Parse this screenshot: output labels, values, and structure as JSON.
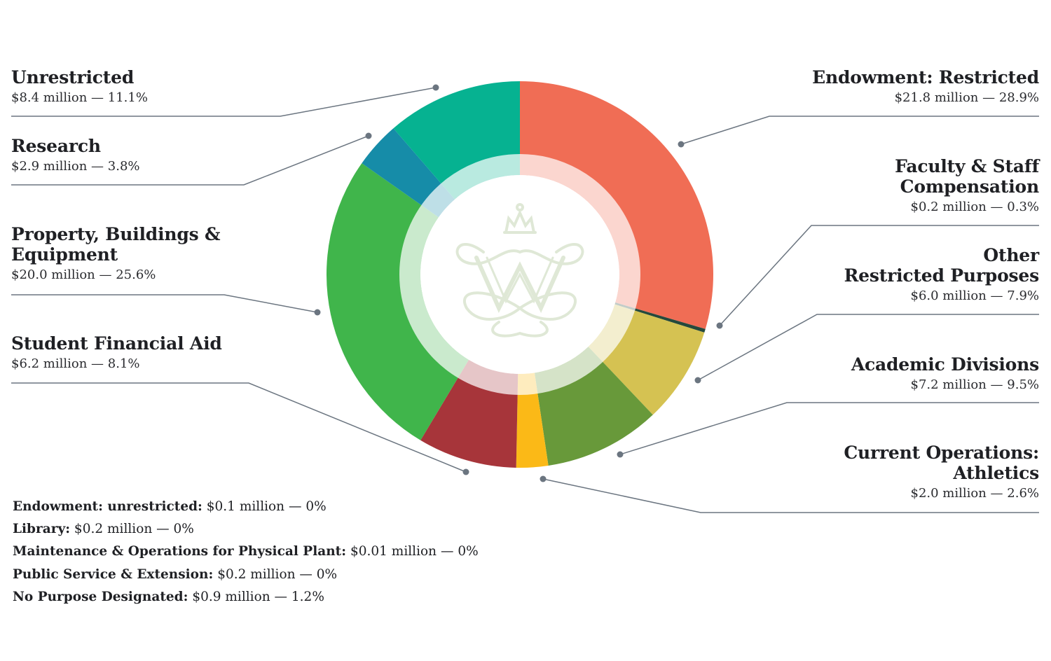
{
  "chart_data": {
    "type": "pie",
    "style": "donut",
    "slices": [
      {
        "label": "Endowment: Restricted",
        "value": 21.8,
        "percent": 28.9,
        "value_text": "$21.8 million — 28.9%",
        "color": "#f06d55"
      },
      {
        "label": "Faculty & Staff Compensation",
        "value": 0.2,
        "percent": 0.3,
        "value_text": "$0.2 million — 0.3%",
        "color": "#25493c"
      },
      {
        "label": "Other Restricted Purposes",
        "value": 6.0,
        "percent": 7.9,
        "value_text": "$6.0 million — 7.9%",
        "color": "#d5c252"
      },
      {
        "label": "Academic Divisions",
        "value": 7.2,
        "percent": 9.5,
        "value_text": "$7.2 million — 9.5%",
        "color": "#68993a"
      },
      {
        "label": "Current Operations: Athletics",
        "value": 2.0,
        "percent": 2.6,
        "value_text": "$2.0 million — 2.6%",
        "color": "#fbb917"
      },
      {
        "label": "Student Financial Aid",
        "value": 6.2,
        "percent": 8.1,
        "value_text": "$6.2 million — 8.1%",
        "color": "#a7353a"
      },
      {
        "label": "Property, Buildings & Equipment",
        "value": 20.0,
        "percent": 25.6,
        "value_text": "$20.0 million — 25.6%",
        "color": "#40b54b"
      },
      {
        "label": "Research",
        "value": 2.9,
        "percent": 3.8,
        "value_text": "$2.9 million — 3.8%",
        "color": "#168ca8"
      },
      {
        "label": "Unrestricted",
        "value": 8.4,
        "percent": 11.1,
        "value_text": "$8.4 million — 11.1%",
        "color": "#06b291"
      }
    ],
    "unplotted": [
      {
        "label": "Endowment: unrestricted:",
        "value_text": "$0.1 million — 0%"
      },
      {
        "label": "Library:",
        "value_text": "$0.2 million — 0%"
      },
      {
        "label": "Maintenance & Operations for Physical Plant:",
        "value_text": "$0.01 million — 0%"
      },
      {
        "label": "Public Service & Extension:",
        "value_text": "$0.2 million — 0%"
      },
      {
        "label": "No Purpose Designated:",
        "value_text": "$0.9 million — 1.2%"
      }
    ]
  },
  "labels": {
    "unrestricted": {
      "name": "Unrestricted",
      "value": "$8.4 million — 11.1%"
    },
    "research": {
      "name": "Research",
      "value": "$2.9 million — 3.8%"
    },
    "property": {
      "name_line1": "Property, Buildings &",
      "name_line2": "Equipment",
      "value": "$20.0 million — 25.6%"
    },
    "student_aid": {
      "name": "Student Financial Aid",
      "value": "$6.2 million — 8.1%"
    },
    "endowment_restricted": {
      "name": "Endowment: Restricted",
      "value": "$21.8 million — 28.9%"
    },
    "faculty": {
      "name_line1": "Faculty & Staff",
      "name_line2": "Compensation",
      "value": "$0.2 million — 0.3%"
    },
    "other_restricted": {
      "name_line1": "Other",
      "name_line2": "Restricted Purposes",
      "value": "$6.0 million — 7.9%"
    },
    "academic": {
      "name": "Academic Divisions",
      "value": "$7.2 million — 9.5%"
    },
    "athletics": {
      "name_line1": "Current Operations:",
      "name_line2": "Athletics",
      "value": "$2.0 million — 2.6%"
    }
  },
  "colors": {
    "leader_line": "#6b7580",
    "center_emblem": "#dfe8d6"
  },
  "icons": {
    "center_emblem": "cypher-crown-emblem"
  }
}
